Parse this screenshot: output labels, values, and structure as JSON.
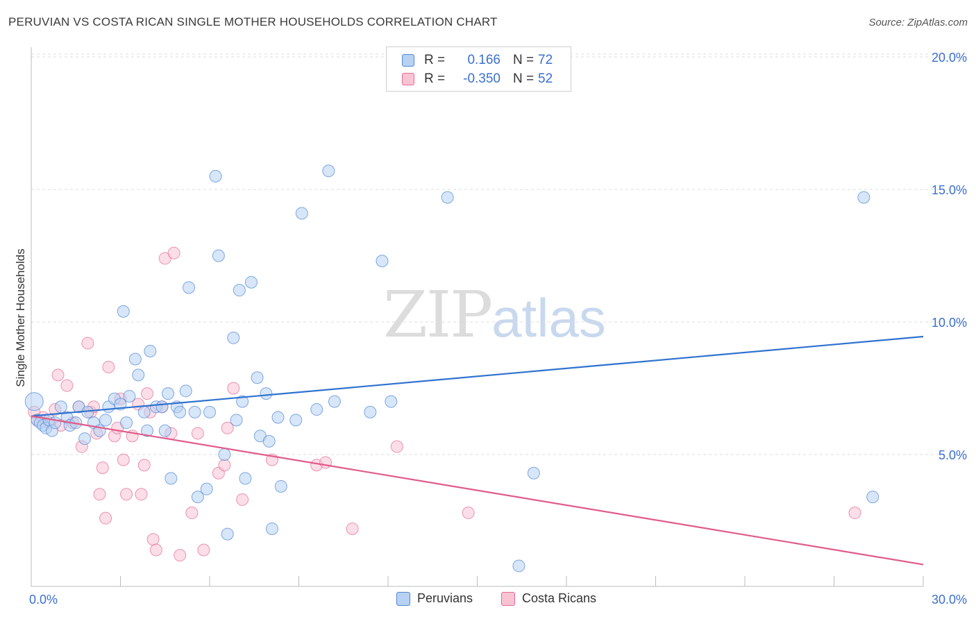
{
  "header": {
    "title": "PERUVIAN VS COSTA RICAN SINGLE MOTHER HOUSEHOLDS CORRELATION CHART",
    "source": "Source: ZipAtlas.com"
  },
  "watermark": {
    "zip": "ZIP",
    "atlas": "atlas"
  },
  "legend": {
    "rows": [
      {
        "r_label": "R =",
        "r_value": "0.166",
        "n_label": "N =",
        "n_value": "72",
        "color": "#a9c8f0"
      },
      {
        "r_label": "R =",
        "r_value": "-0.350",
        "n_label": "N =",
        "n_value": "52",
        "color": "#f6b6c9"
      }
    ]
  },
  "bottom_legend": {
    "peruvians": "Peruvians",
    "costa_ricans": "Costa Ricans"
  },
  "chart_data": {
    "type": "scatter",
    "title": "PERUVIAN VS COSTA RICAN SINGLE MOTHER HOUSEHOLDS CORRELATION CHART",
    "ylabel": "Single Mother Households",
    "xlabel": "",
    "xlim": [
      0,
      30
    ],
    "ylim": [
      0,
      21
    ],
    "x_ticks": [
      "0.0%",
      "30.0%"
    ],
    "y_ticks": [
      {
        "value": 5,
        "label": "5.0%"
      },
      {
        "value": 10,
        "label": "10.0%"
      },
      {
        "value": 15,
        "label": "15.0%"
      },
      {
        "value": 20,
        "label": "20.0%"
      }
    ],
    "grid": true,
    "colors": {
      "peruvians": "#4f86d6",
      "peruvians_fill": "#b7d1f3",
      "costa": "#e46a93",
      "costa_fill": "#f8c3d3"
    },
    "series": [
      {
        "name": "Peruvians",
        "trend": {
          "x": [
            0,
            30
          ],
          "y": [
            6.45,
            9.45
          ]
        },
        "points": [
          [
            0.1,
            7.0
          ],
          [
            0.2,
            6.3
          ],
          [
            0.3,
            6.2
          ],
          [
            0.4,
            6.1
          ],
          [
            0.5,
            6.0
          ],
          [
            0.6,
            6.3
          ],
          [
            0.7,
            5.9
          ],
          [
            0.8,
            6.2
          ],
          [
            1.0,
            6.8
          ],
          [
            1.2,
            6.4
          ],
          [
            1.3,
            6.1
          ],
          [
            1.5,
            6.2
          ],
          [
            1.6,
            6.8
          ],
          [
            1.8,
            5.6
          ],
          [
            1.9,
            6.6
          ],
          [
            2.1,
            6.2
          ],
          [
            2.3,
            5.9
          ],
          [
            2.5,
            6.3
          ],
          [
            2.6,
            6.8
          ],
          [
            2.8,
            7.1
          ],
          [
            3.0,
            6.9
          ],
          [
            3.1,
            10.4
          ],
          [
            3.2,
            6.2
          ],
          [
            3.3,
            7.2
          ],
          [
            3.5,
            8.6
          ],
          [
            3.6,
            8.0
          ],
          [
            3.8,
            6.6
          ],
          [
            3.9,
            5.9
          ],
          [
            4.0,
            8.9
          ],
          [
            4.2,
            6.8
          ],
          [
            4.4,
            6.8
          ],
          [
            4.5,
            5.9
          ],
          [
            4.6,
            7.3
          ],
          [
            4.7,
            4.1
          ],
          [
            4.9,
            6.8
          ],
          [
            5.0,
            6.6
          ],
          [
            5.2,
            7.4
          ],
          [
            5.3,
            11.3
          ],
          [
            5.5,
            6.6
          ],
          [
            5.6,
            3.4
          ],
          [
            5.9,
            3.7
          ],
          [
            6.0,
            6.6
          ],
          [
            6.2,
            15.5
          ],
          [
            6.3,
            12.5
          ],
          [
            6.5,
            5.0
          ],
          [
            6.6,
            2.0
          ],
          [
            6.8,
            9.4
          ],
          [
            6.9,
            6.3
          ],
          [
            7.0,
            11.2
          ],
          [
            7.1,
            7.0
          ],
          [
            7.2,
            4.1
          ],
          [
            7.4,
            11.5
          ],
          [
            7.6,
            7.9
          ],
          [
            7.7,
            5.7
          ],
          [
            7.9,
            7.3
          ],
          [
            8.0,
            5.5
          ],
          [
            8.1,
            2.2
          ],
          [
            8.3,
            6.4
          ],
          [
            8.4,
            3.8
          ],
          [
            8.9,
            6.3
          ],
          [
            9.1,
            14.1
          ],
          [
            9.6,
            6.7
          ],
          [
            10.0,
            15.7
          ],
          [
            10.2,
            7.0
          ],
          [
            11.4,
            6.6
          ],
          [
            11.8,
            12.3
          ],
          [
            12.1,
            7.0
          ],
          [
            14.0,
            14.7
          ],
          [
            16.4,
            0.8
          ],
          [
            16.9,
            4.3
          ],
          [
            28.0,
            14.7
          ],
          [
            28.3,
            3.4
          ]
        ]
      },
      {
        "name": "Costa Ricans",
        "trend": {
          "x": [
            0,
            30
          ],
          "y": [
            6.45,
            0.85
          ]
        },
        "points": [
          [
            0.1,
            6.6
          ],
          [
            0.2,
            6.3
          ],
          [
            0.4,
            6.4
          ],
          [
            0.6,
            6.2
          ],
          [
            0.8,
            6.7
          ],
          [
            0.9,
            8.0
          ],
          [
            1.0,
            6.1
          ],
          [
            1.2,
            7.6
          ],
          [
            1.4,
            6.2
          ],
          [
            1.6,
            6.8
          ],
          [
            1.7,
            5.3
          ],
          [
            1.9,
            9.2
          ],
          [
            2.0,
            6.6
          ],
          [
            2.1,
            6.8
          ],
          [
            2.2,
            5.8
          ],
          [
            2.3,
            3.5
          ],
          [
            2.4,
            4.5
          ],
          [
            2.5,
            2.6
          ],
          [
            2.6,
            8.3
          ],
          [
            2.8,
            5.7
          ],
          [
            2.9,
            6.0
          ],
          [
            3.0,
            7.1
          ],
          [
            3.1,
            4.8
          ],
          [
            3.2,
            3.5
          ],
          [
            3.4,
            5.7
          ],
          [
            3.6,
            6.9
          ],
          [
            3.7,
            3.5
          ],
          [
            3.8,
            4.6
          ],
          [
            3.9,
            7.3
          ],
          [
            4.0,
            6.6
          ],
          [
            4.1,
            1.8
          ],
          [
            4.2,
            1.4
          ],
          [
            4.4,
            6.8
          ],
          [
            4.5,
            12.4
          ],
          [
            4.7,
            5.8
          ],
          [
            4.8,
            12.6
          ],
          [
            5.0,
            1.2
          ],
          [
            5.4,
            2.8
          ],
          [
            5.6,
            5.8
          ],
          [
            5.8,
            1.4
          ],
          [
            6.3,
            4.3
          ],
          [
            6.5,
            4.6
          ],
          [
            6.6,
            6.0
          ],
          [
            6.8,
            7.5
          ],
          [
            7.1,
            3.3
          ],
          [
            8.1,
            4.8
          ],
          [
            9.6,
            4.6
          ],
          [
            9.9,
            4.7
          ],
          [
            10.8,
            2.2
          ],
          [
            12.3,
            5.3
          ],
          [
            14.7,
            2.8
          ],
          [
            27.7,
            2.8
          ]
        ]
      }
    ]
  }
}
